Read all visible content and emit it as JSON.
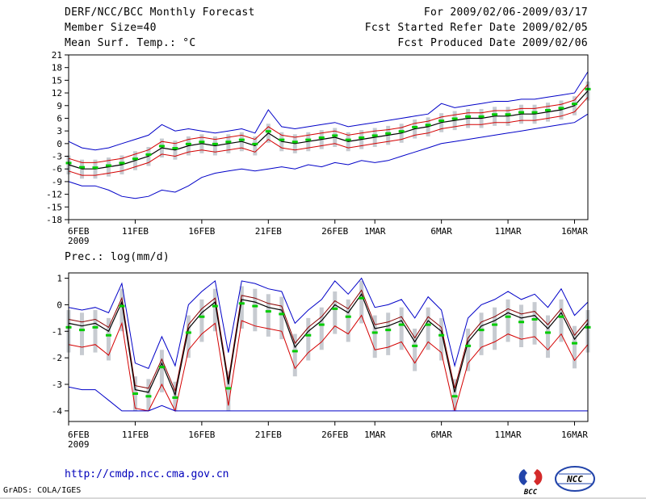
{
  "header": {
    "title": "DERF/NCC/BCC Monthly Forecast",
    "member_size": "Member Size=40",
    "for_range": "For 2009/02/06-2009/03/17",
    "refer_date": "Fcst Started Refer Date 2009/02/05",
    "produced_date": "Fcst Produced Date 2009/02/06"
  },
  "footer": {
    "url": "http://cmdp.ncc.cma.gov.cn",
    "credit": "GrADS: COLA/IGES",
    "logos": [
      {
        "label": "BCC"
      },
      {
        "label": "NCC"
      }
    ]
  },
  "chart_data": [
    {
      "type": "line",
      "title": "Mean Surf. Temp.: °C",
      "xlabel": "",
      "ylabel": "",
      "ylim": [
        -18,
        21
      ],
      "y_ticks": [
        21,
        18,
        15,
        12,
        9,
        6,
        3,
        0,
        -3,
        -6,
        -9,
        -12,
        -15,
        -18
      ],
      "x_ticks": [
        {
          "i": 0,
          "label": "6FEB"
        },
        {
          "i": 5,
          "label": "11FEB"
        },
        {
          "i": 10,
          "label": "16FEB"
        },
        {
          "i": 15,
          "label": "21FEB"
        },
        {
          "i": 20,
          "label": "26FEB"
        },
        {
          "i": 23,
          "label": "1MAR"
        },
        {
          "i": 28,
          "label": "6MAR"
        },
        {
          "i": 33,
          "label": "11MAR"
        },
        {
          "i": 38,
          "label": "16MAR"
        }
      ],
      "x_sub_label": "2009",
      "legend_position": "none",
      "grid": false,
      "bars": {
        "name": "ensemble-spread",
        "color": "#c7cbd1",
        "low": [
          -7.3,
          -8.3,
          -8.3,
          -7.8,
          -7.3,
          -6.3,
          -5.3,
          -3.3,
          -3.8,
          -2.8,
          -2.3,
          -2.8,
          -2.3,
          -1.8,
          -2.8,
          0.2,
          -1.8,
          -2.3,
          -1.8,
          -1.3,
          -0.8,
          -1.8,
          -1.3,
          -0.8,
          -0.3,
          0.2,
          1.2,
          1.7,
          2.7,
          3.2,
          3.7,
          3.7,
          4.2,
          4.2,
          4.7,
          4.7,
          5.2,
          5.7,
          6.7,
          10.2
        ],
        "high": [
          -2.8,
          -3.8,
          -3.8,
          -3.3,
          -2.8,
          -1.8,
          -0.8,
          1.2,
          0.7,
          1.7,
          2.2,
          1.7,
          2.2,
          2.7,
          1.7,
          4.7,
          2.7,
          2.2,
          2.7,
          3.2,
          3.7,
          2.7,
          3.2,
          3.7,
          4.2,
          4.7,
          5.7,
          6.2,
          7.2,
          7.7,
          8.2,
          8.2,
          8.7,
          8.7,
          9.2,
          9.2,
          9.7,
          10.2,
          11.2,
          14.7
        ]
      },
      "series": [
        {
          "name": "ensemble-max",
          "color": "#0000c8",
          "style": "line",
          "width": 1,
          "values": [
            0.5,
            -1,
            -1.5,
            -1,
            0,
            1,
            2,
            4.5,
            3,
            3.5,
            3,
            2.5,
            3,
            3.5,
            2.5,
            8,
            4,
            3.5,
            4,
            4.5,
            5,
            4,
            4.5,
            5,
            5.5,
            6,
            6.5,
            7,
            9.5,
            8.5,
            9,
            9.5,
            10,
            10,
            10.5,
            10.5,
            11,
            11.5,
            12,
            17
          ]
        },
        {
          "name": "upper-quartile",
          "color": "#d40000",
          "style": "line",
          "width": 1,
          "values": [
            -3.5,
            -4.5,
            -4.5,
            -4,
            -3.5,
            -2.5,
            -1.5,
            0.5,
            0,
            1,
            1.5,
            1,
            1.5,
            2,
            1,
            4,
            2,
            1.5,
            2,
            2.5,
            3,
            2,
            2.5,
            3,
            3.3,
            3.8,
            4.8,
            5.3,
            6.3,
            6.8,
            7.3,
            7.3,
            7.8,
            7.8,
            8.3,
            8.3,
            8.8,
            9.3,
            10.3,
            14
          ]
        },
        {
          "name": "median",
          "color": "#000000",
          "style": "line",
          "width": 1.2,
          "values": [
            -5,
            -6,
            -6,
            -5.5,
            -5,
            -4,
            -3,
            -1,
            -1.5,
            -0.5,
            0,
            -0.5,
            0,
            0.5,
            -0.5,
            2.5,
            0.5,
            0,
            0.5,
            1,
            1.5,
            0.5,
            1,
            1.5,
            2,
            2.5,
            3.5,
            4,
            5,
            5.5,
            6,
            6,
            6.5,
            6.5,
            7,
            7,
            7.5,
            8,
            9,
            12.5
          ]
        },
        {
          "name": "lower-quartile",
          "color": "#d40000",
          "style": "line",
          "width": 1,
          "values": [
            -6.5,
            -7.5,
            -7.5,
            -7,
            -6.5,
            -5.5,
            -4.5,
            -2.5,
            -3,
            -2,
            -1.5,
            -2,
            -1.5,
            -1,
            -2,
            1,
            -1,
            -1.5,
            -1,
            -0.5,
            0,
            -1,
            -0.5,
            0,
            0.5,
            1,
            2,
            2.5,
            3.5,
            4,
            4.5,
            4.5,
            5,
            5,
            5.5,
            5.5,
            6,
            6.5,
            7.5,
            11
          ]
        },
        {
          "name": "ensemble-min",
          "color": "#0000c8",
          "style": "line",
          "width": 1,
          "values": [
            -9,
            -10,
            -10,
            -11,
            -12.5,
            -13,
            -12.5,
            -11,
            -11.5,
            -10,
            -8,
            -7,
            -6.5,
            -6,
            -6.5,
            -6,
            -5.5,
            -6,
            -5,
            -5.5,
            -4.5,
            -5,
            -4,
            -4.5,
            -4,
            -3,
            -2,
            -1,
            0,
            0.5,
            1,
            1.5,
            2,
            2.5,
            3,
            3.5,
            4,
            4.5,
            5,
            7
          ]
        },
        {
          "name": "ensemble-mean",
          "color": "#00cc00",
          "style": "dashes",
          "values": [
            -4.6,
            -5.6,
            -5.7,
            -5.2,
            -4.6,
            -3.6,
            -2.6,
            -0.6,
            -1.1,
            -0.1,
            0.4,
            -0.1,
            0.4,
            0.9,
            -0.1,
            2.9,
            0.9,
            0.4,
            0.9,
            1.4,
            1.9,
            0.9,
            1.4,
            1.9,
            2.4,
            2.9,
            3.9,
            4.4,
            5.4,
            5.9,
            6.4,
            6.4,
            6.9,
            6.9,
            7.4,
            7.4,
            7.9,
            8.4,
            9.4,
            12.9
          ]
        }
      ]
    },
    {
      "type": "line",
      "title": "Prec.: log(mm/d)",
      "xlabel": "",
      "ylabel": "",
      "ylim": [
        -4.4,
        1.2
      ],
      "y_ticks": [
        1,
        0,
        -1,
        -2,
        -3,
        -4
      ],
      "x_ticks": [
        {
          "i": 0,
          "label": "6FEB"
        },
        {
          "i": 5,
          "label": "11FEB"
        },
        {
          "i": 10,
          "label": "16FEB"
        },
        {
          "i": 15,
          "label": "21FEB"
        },
        {
          "i": 20,
          "label": "26FEB"
        },
        {
          "i": 23,
          "label": "1MAR"
        },
        {
          "i": 28,
          "label": "6MAR"
        },
        {
          "i": 33,
          "label": "11MAR"
        },
        {
          "i": 38,
          "label": "16MAR"
        }
      ],
      "x_sub_label": "2009",
      "legend_position": "none",
      "grid": false,
      "bars": {
        "name": "ensemble-spread",
        "color": "#c7cbd1",
        "low": [
          -1.8,
          -1.9,
          -1.8,
          -2.1,
          -1.0,
          -4,
          -4,
          -3.3,
          -4,
          -2.0,
          -1.4,
          -1.0,
          -4,
          -0.9,
          -1.0,
          -1.2,
          -1.3,
          -2.7,
          -2.1,
          -1.7,
          -1.1,
          -1.4,
          -0.7,
          -2.0,
          -1.9,
          -1.7,
          -2.5,
          -1.7,
          -2.1,
          -4,
          -2.5,
          -1.9,
          -1.7,
          -1.4,
          -1.6,
          -1.5,
          -2.0,
          -1.4,
          -2.4,
          -1.8
        ],
        "high": [
          -0.2,
          -0.3,
          -0.2,
          -0.5,
          0.6,
          -2.7,
          -2.8,
          -1.7,
          -2.9,
          -0.4,
          0.2,
          0.6,
          -2.5,
          0.7,
          0.6,
          0.4,
          0.3,
          -1.1,
          -0.5,
          -0.1,
          0.5,
          0.2,
          0.9,
          -0.4,
          -0.3,
          -0.1,
          -0.9,
          -0.1,
          -0.5,
          -2.8,
          -0.9,
          -0.3,
          -0.1,
          0.2,
          0.0,
          0.1,
          -0.4,
          0.2,
          -0.8,
          -0.2
        ]
      },
      "series": [
        {
          "name": "ensemble-max",
          "color": "#0000c8",
          "style": "line",
          "width": 1,
          "values": [
            -0.1,
            -0.2,
            -0.1,
            -0.3,
            0.8,
            -2.2,
            -2.4,
            -1.2,
            -2.3,
            0.0,
            0.5,
            0.9,
            -1.8,
            0.9,
            0.8,
            0.6,
            0.5,
            -0.7,
            -0.2,
            0.2,
            0.9,
            0.4,
            1.0,
            -0.1,
            0.0,
            0.2,
            -0.5,
            0.3,
            -0.2,
            -2.3,
            -0.5,
            0.0,
            0.2,
            0.5,
            0.2,
            0.4,
            -0.1,
            0.6,
            -0.4,
            0.1
          ]
        },
        {
          "name": "upper-quartile",
          "color": "#8b0000",
          "style": "line",
          "width": 1,
          "values": [
            -0.55,
            -0.65,
            -0.55,
            -0.85,
            0.25,
            -3.05,
            -3.15,
            -2.05,
            -3.25,
            -0.75,
            -0.15,
            0.25,
            -2.85,
            0.35,
            0.25,
            0.05,
            -0.05,
            -1.45,
            -0.85,
            -0.45,
            0.15,
            -0.15,
            0.55,
            -0.75,
            -0.65,
            -0.45,
            -1.25,
            -0.45,
            -0.85,
            -3.15,
            -1.25,
            -0.65,
            -0.45,
            -0.15,
            -0.35,
            -0.25,
            -0.75,
            -0.15,
            -1.15,
            -0.55
          ]
        },
        {
          "name": "median",
          "color": "#000000",
          "style": "line",
          "width": 1.2,
          "values": [
            -0.7,
            -0.8,
            -0.7,
            -1.0,
            0.1,
            -3.2,
            -3.3,
            -2.2,
            -3.4,
            -0.9,
            -0.3,
            0.1,
            -3.0,
            0.2,
            0.1,
            -0.1,
            -0.2,
            -1.6,
            -1.0,
            -0.6,
            0.0,
            -0.3,
            0.4,
            -0.9,
            -0.8,
            -0.6,
            -1.4,
            -0.6,
            -1.0,
            -3.3,
            -1.4,
            -0.8,
            -0.6,
            -0.3,
            -0.5,
            -0.4,
            -0.9,
            -0.3,
            -1.3,
            -0.7
          ]
        },
        {
          "name": "lower-quartile",
          "color": "#d40000",
          "style": "line",
          "width": 1,
          "values": [
            -1.5,
            -1.6,
            -1.5,
            -1.9,
            -0.7,
            -3.9,
            -4.0,
            -3.0,
            -4.0,
            -1.7,
            -1.1,
            -0.7,
            -3.8,
            -0.6,
            -0.8,
            -0.9,
            -1.0,
            -2.4,
            -1.8,
            -1.4,
            -0.8,
            -1.1,
            -0.4,
            -1.7,
            -1.6,
            -1.4,
            -2.2,
            -1.4,
            -1.8,
            -4.0,
            -2.2,
            -1.6,
            -1.4,
            -1.1,
            -1.3,
            -1.2,
            -1.7,
            -1.1,
            -2.1,
            -1.5
          ]
        },
        {
          "name": "ensemble-min",
          "color": "#0000c8",
          "style": "line",
          "width": 1,
          "values": [
            -3.1,
            -3.2,
            -3.2,
            -3.6,
            -4,
            -4,
            -4,
            -3.8,
            -4,
            -4,
            -4,
            -4,
            -4,
            -4,
            -4,
            -4,
            -4,
            -4,
            -4,
            -4,
            -4,
            -4,
            -4,
            -4,
            -4,
            -4,
            -4,
            -4,
            -4,
            -4,
            -4,
            -4,
            -4,
            -4,
            -4,
            -4,
            -4,
            -4,
            -4,
            -4
          ]
        },
        {
          "name": "ensemble-mean",
          "color": "#00cc00",
          "style": "dashes",
          "values": [
            -0.85,
            -0.95,
            -0.85,
            -1.15,
            -0.05,
            -3.35,
            -3.45,
            -2.35,
            -3.5,
            -1.05,
            -0.45,
            -0.05,
            -3.15,
            0.05,
            -0.05,
            -0.25,
            -0.35,
            -1.75,
            -1.15,
            -0.75,
            -0.15,
            -0.45,
            0.25,
            -1.05,
            -0.95,
            -0.75,
            -1.55,
            -0.75,
            -1.15,
            -3.45,
            -1.55,
            -0.95,
            -0.75,
            -0.45,
            -0.65,
            -0.55,
            -1.05,
            -0.45,
            -1.45,
            -0.85
          ]
        }
      ]
    }
  ]
}
